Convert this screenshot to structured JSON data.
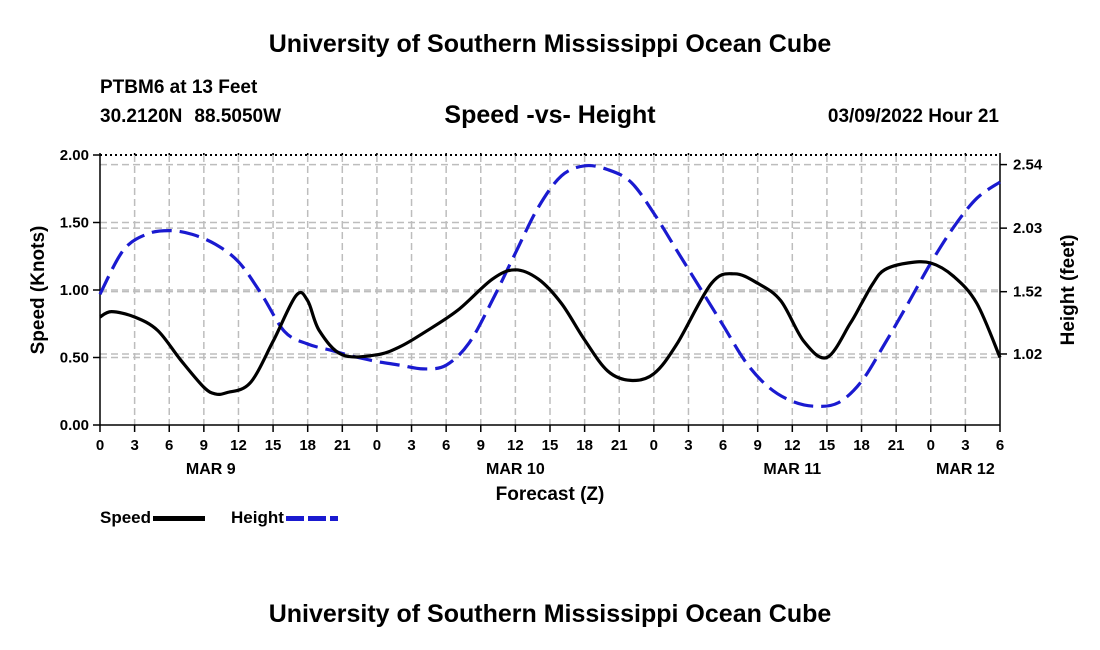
{
  "header": {
    "title": "University of Southern Mississippi Ocean Cube",
    "station": "PTBM6 at 13 Feet",
    "lat": "30.2120N",
    "lon": "88.5050W",
    "subtitle": "Speed -vs- Height",
    "datetime": "03/09/2022 Hour 21",
    "footer_title": "University of Southern Mississippi Ocean Cube"
  },
  "chart_data": {
    "type": "line",
    "title": "Speed -vs- Height",
    "xlabel": "Forecast (Z)",
    "ylabel": "Speed (Knots)",
    "y2label": "Height (feet)",
    "xlim": [
      0,
      78
    ],
    "ylim": [
      0,
      2.0
    ],
    "y2lim": [
      0.45,
      2.617
    ],
    "x_tick_hours": [
      0,
      3,
      6,
      9,
      12,
      15,
      18,
      21,
      24,
      27,
      30,
      33,
      36,
      39,
      42,
      45,
      48,
      51,
      54,
      57,
      60,
      63,
      66,
      69,
      72,
      75,
      78
    ],
    "x_tick_labels": [
      "0",
      "3",
      "6",
      "9",
      "12",
      "15",
      "18",
      "21",
      "0",
      "3",
      "6",
      "9",
      "12",
      "15",
      "18",
      "21",
      "0",
      "3",
      "6",
      "9",
      "12",
      "15",
      "18",
      "21",
      "0",
      "3",
      "6"
    ],
    "date_labels": [
      {
        "label": "MAR 9",
        "hour": 9.6
      },
      {
        "label": "MAR 10",
        "hour": 36.0
      },
      {
        "label": "MAR 11",
        "hour": 60.0
      },
      {
        "label": "MAR 12",
        "hour": 75.0
      }
    ],
    "y_ticks": [
      0,
      0.5,
      1.0,
      1.5,
      2.0
    ],
    "y_tick_labels": [
      "0.00",
      "0.50",
      "1.00",
      "1.50",
      "2.00"
    ],
    "y2_ticks": [
      1.02,
      1.52,
      2.03,
      2.54
    ],
    "y2_tick_labels": [
      "1.02",
      "1.52",
      "2.03",
      "2.54"
    ],
    "grid": true,
    "series": [
      {
        "name": "Speed",
        "axis": "left",
        "color": "#000000",
        "dash": "solid",
        "x": [
          0,
          1,
          3,
          5,
          7,
          9,
          10,
          11,
          13,
          15,
          17,
          18,
          19,
          21,
          24,
          26,
          28,
          31,
          34,
          36,
          38,
          40,
          42,
          44,
          46,
          48,
          50,
          53,
          55,
          57,
          59,
          61,
          63,
          65,
          66,
          67,
          68,
          70,
          72,
          74,
          76,
          78
        ],
        "y": [
          0.8,
          0.84,
          0.8,
          0.7,
          0.48,
          0.28,
          0.23,
          0.24,
          0.31,
          0.62,
          0.96,
          0.92,
          0.7,
          0.52,
          0.52,
          0.58,
          0.68,
          0.85,
          1.08,
          1.15,
          1.08,
          0.9,
          0.63,
          0.4,
          0.33,
          0.38,
          0.6,
          1.05,
          1.12,
          1.05,
          0.92,
          0.62,
          0.5,
          0.75,
          0.9,
          1.05,
          1.15,
          1.2,
          1.2,
          1.1,
          0.9,
          0.5
        ]
      },
      {
        "name": "Height",
        "axis": "right",
        "color": "#1a1ad0",
        "dash": "dashed",
        "x": [
          0,
          2,
          4,
          6,
          8,
          10,
          12,
          14,
          16,
          18,
          20,
          22,
          24,
          26,
          28,
          30,
          32,
          34,
          36,
          38,
          40,
          42,
          44,
          46,
          48,
          50,
          52,
          54,
          56,
          58,
          60,
          62,
          64,
          66,
          68,
          70,
          72,
          74,
          76,
          78
        ],
        "y": [
          1.5,
          1.85,
          1.98,
          2.01,
          1.98,
          1.9,
          1.76,
          1.5,
          1.2,
          1.1,
          1.05,
          1.0,
          0.96,
          0.93,
          0.9,
          0.93,
          1.11,
          1.45,
          1.83,
          2.2,
          2.45,
          2.53,
          2.5,
          2.4,
          2.15,
          1.85,
          1.55,
          1.25,
          0.95,
          0.75,
          0.64,
          0.6,
          0.63,
          0.8,
          1.1,
          1.42,
          1.75,
          2.04,
          2.27,
          2.4
        ]
      }
    ],
    "legend": [
      {
        "label": "Speed",
        "color": "#000000",
        "style": "solid"
      },
      {
        "label": "Height",
        "color": "#1a1ad0",
        "style": "dashed"
      }
    ]
  }
}
